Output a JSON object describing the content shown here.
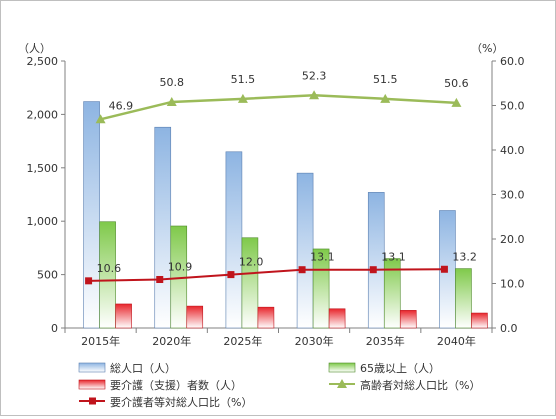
{
  "chart_data": {
    "type": "bar",
    "categories": [
      "2015年",
      "2020年",
      "2025年",
      "2030年",
      "2035年",
      "2040年"
    ],
    "series": [
      {
        "name": "総人口（人）",
        "type": "bar",
        "axis": "left",
        "color": "#8db4e2",
        "values": [
          2120,
          1880,
          1650,
          1450,
          1270,
          1100
        ]
      },
      {
        "name": "65歳以上（人）",
        "type": "bar",
        "axis": "left",
        "color": "#7fc94a",
        "values": [
          995,
          955,
          845,
          740,
          650,
          556
        ]
      },
      {
        "name": "要介護（支援）者数（人）",
        "type": "bar",
        "axis": "left",
        "color": "#e8262c",
        "values": [
          225,
          205,
          195,
          180,
          165,
          140
        ]
      },
      {
        "name": "高齢者対総人口比（%）",
        "type": "line",
        "axis": "right",
        "color": "#9bbb59",
        "values": [
          46.9,
          50.8,
          51.5,
          52.3,
          51.5,
          50.6
        ],
        "labels": [
          "46.9",
          "50.8",
          "51.5",
          "52.3",
          "51.5",
          "50.6"
        ]
      },
      {
        "name": "要介護者等対総人口比（%）",
        "type": "line",
        "axis": "right",
        "color": "#c0141c",
        "values": [
          10.6,
          10.9,
          12.0,
          13.1,
          13.1,
          13.2
        ],
        "labels": [
          "10.6",
          "10.9",
          "12.0",
          "13.1",
          "13.1",
          "13.2"
        ]
      }
    ],
    "y_left": {
      "unit": "（人）",
      "lim": [
        0,
        2500
      ],
      "ticks": [
        0,
        500,
        1000,
        1500,
        2000,
        2500
      ],
      "tick_labels": [
        "0",
        "500",
        "1,000",
        "1,500",
        "2,000",
        "2,500"
      ]
    },
    "y_right": {
      "unit": "（%）",
      "lim": [
        0,
        60
      ],
      "ticks": [
        0,
        10,
        20,
        30,
        40,
        50,
        60
      ],
      "tick_labels": [
        "0.0",
        "10.0",
        "20.0",
        "30.0",
        "40.0",
        "50.0",
        "60.0"
      ]
    },
    "grid": false,
    "legend": {
      "position": "bottom"
    }
  }
}
